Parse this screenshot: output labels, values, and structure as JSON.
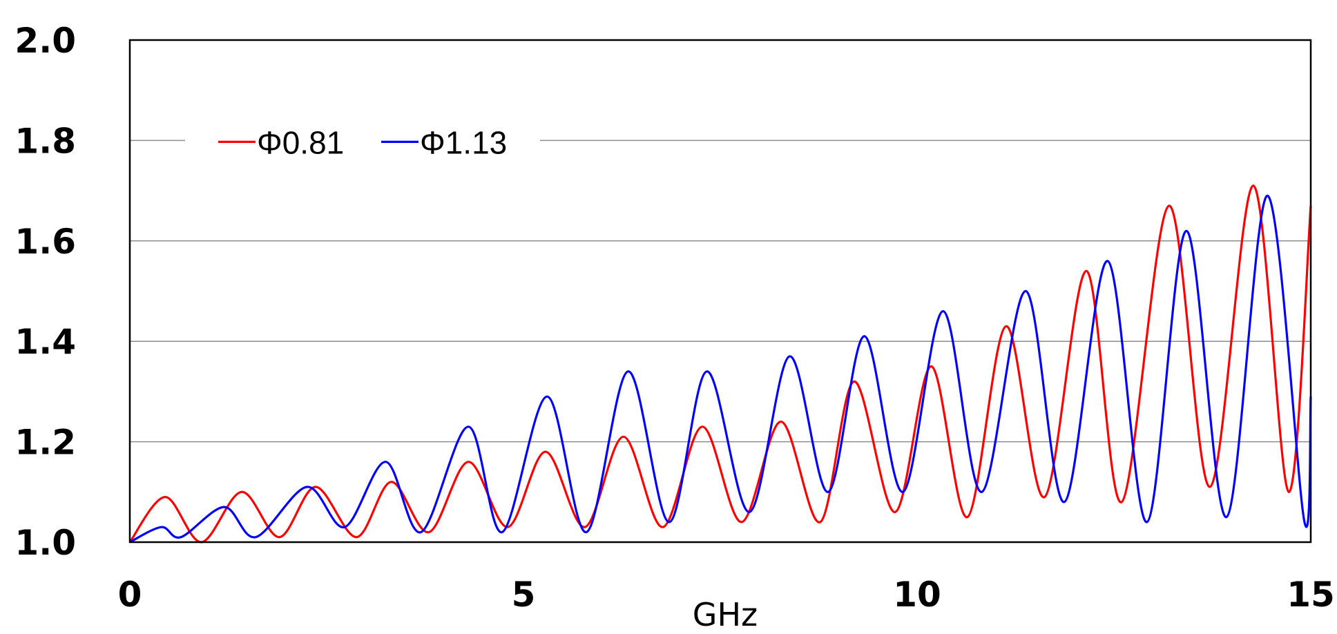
{
  "chart_data": {
    "type": "line",
    "title": "",
    "xlabel": "GHz",
    "ylabel": "",
    "xlim": [
      0,
      15
    ],
    "ylim": [
      1.0,
      2.0
    ],
    "x_ticks": [
      0,
      5,
      10,
      15
    ],
    "x_tick_labels": [
      "0",
      "5",
      "10",
      "15"
    ],
    "y_ticks": [
      1.0,
      1.2,
      1.4,
      1.6,
      1.8,
      2.0
    ],
    "y_tick_labels": [
      "1.0",
      "1.2",
      "1.4",
      "1.6",
      "1.8",
      "2.0"
    ],
    "grid": "horizontal",
    "legend_position": "top-left",
    "series": [
      {
        "name": "Φ0.81",
        "color": "#ff0000",
        "x": [
          0,
          0.45,
          0.91,
          1.42,
          1.9,
          2.36,
          2.88,
          3.32,
          3.8,
          4.3,
          4.8,
          5.28,
          5.78,
          6.27,
          6.77,
          7.27,
          7.77,
          8.27,
          8.77,
          9.2,
          9.72,
          10.18,
          10.64,
          11.13,
          11.62,
          12.15,
          12.6,
          13.2,
          13.72,
          14.27,
          14.72,
          15.0
        ],
        "y": [
          1.0,
          1.09,
          1.0,
          1.1,
          1.01,
          1.11,
          1.01,
          1.12,
          1.02,
          1.16,
          1.03,
          1.18,
          1.03,
          1.21,
          1.03,
          1.23,
          1.04,
          1.24,
          1.04,
          1.32,
          1.06,
          1.35,
          1.05,
          1.43,
          1.09,
          1.54,
          1.08,
          1.67,
          1.11,
          1.71,
          1.1,
          1.67
        ]
      },
      {
        "name": "Φ1.13",
        "color": "#0000ff",
        "x": [
          0,
          0.4,
          0.65,
          1.2,
          1.6,
          2.25,
          2.73,
          3.25,
          3.7,
          4.3,
          4.73,
          5.3,
          5.8,
          6.33,
          6.85,
          7.33,
          7.87,
          8.38,
          8.87,
          9.33,
          9.82,
          10.33,
          10.82,
          11.38,
          11.87,
          12.42,
          12.92,
          13.42,
          13.93,
          14.45,
          14.92,
          15.0
        ],
        "y": [
          1.0,
          1.03,
          1.01,
          1.07,
          1.01,
          1.11,
          1.03,
          1.16,
          1.02,
          1.23,
          1.02,
          1.29,
          1.02,
          1.34,
          1.04,
          1.34,
          1.06,
          1.37,
          1.1,
          1.41,
          1.1,
          1.46,
          1.1,
          1.5,
          1.08,
          1.56,
          1.04,
          1.62,
          1.05,
          1.69,
          1.04,
          1.29
        ]
      }
    ]
  }
}
